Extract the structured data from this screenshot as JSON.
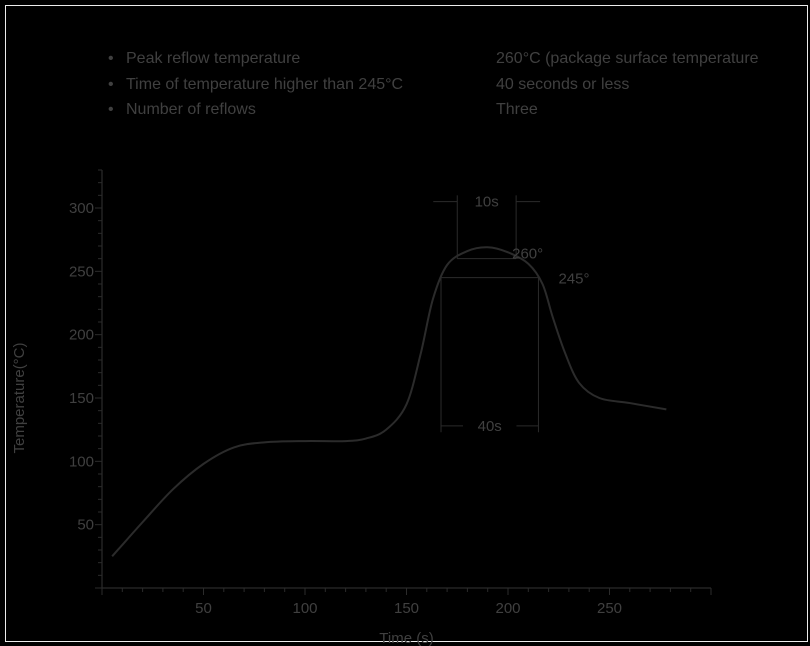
{
  "specs": [
    {
      "label": "Peak reflow temperature",
      "value": "260°C (package surface temperature"
    },
    {
      "label": "Time of temperature higher than 245°C",
      "value": "40 seconds or less"
    },
    {
      "label": "Number of reflows",
      "value": "Three"
    }
  ],
  "bullet": "•",
  "chart_data": {
    "type": "line",
    "title": "",
    "xlabel": "Time (s)",
    "ylabel": "Temperature(°C)",
    "xlim": [
      0,
      300
    ],
    "ylim": [
      0,
      330
    ],
    "x_ticks": [
      50,
      100,
      150,
      200,
      250
    ],
    "y_ticks": [
      50,
      100,
      150,
      200,
      250,
      300
    ],
    "series": [
      {
        "points": [
          [
            5,
            25
          ],
          [
            20,
            52
          ],
          [
            35,
            78
          ],
          [
            50,
            98
          ],
          [
            65,
            111
          ],
          [
            80,
            115
          ],
          [
            100,
            116
          ],
          [
            120,
            116
          ],
          [
            130,
            118
          ],
          [
            140,
            125
          ],
          [
            150,
            145
          ],
          [
            157,
            185
          ],
          [
            163,
            228
          ],
          [
            170,
            255
          ],
          [
            180,
            266
          ],
          [
            190,
            269
          ],
          [
            200,
            265
          ],
          [
            210,
            256
          ],
          [
            217,
            240
          ],
          [
            222,
            214
          ],
          [
            228,
            186
          ],
          [
            235,
            162
          ],
          [
            245,
            150
          ],
          [
            260,
            146
          ],
          [
            278,
            141
          ]
        ]
      }
    ],
    "annotations": {
      "peak_label": "260°",
      "threshold_label": "245°",
      "window_10s": {
        "label": "10s",
        "x_start": 175,
        "x_end": 204
      },
      "window_40s": {
        "label": "40s",
        "x_start": 167,
        "x_end": 215
      },
      "peak_level": 260,
      "threshold_level": 245
    },
    "grid": false,
    "colors": {
      "line": "#2b2b2b",
      "text": "#404040",
      "background": "#000000"
    }
  }
}
